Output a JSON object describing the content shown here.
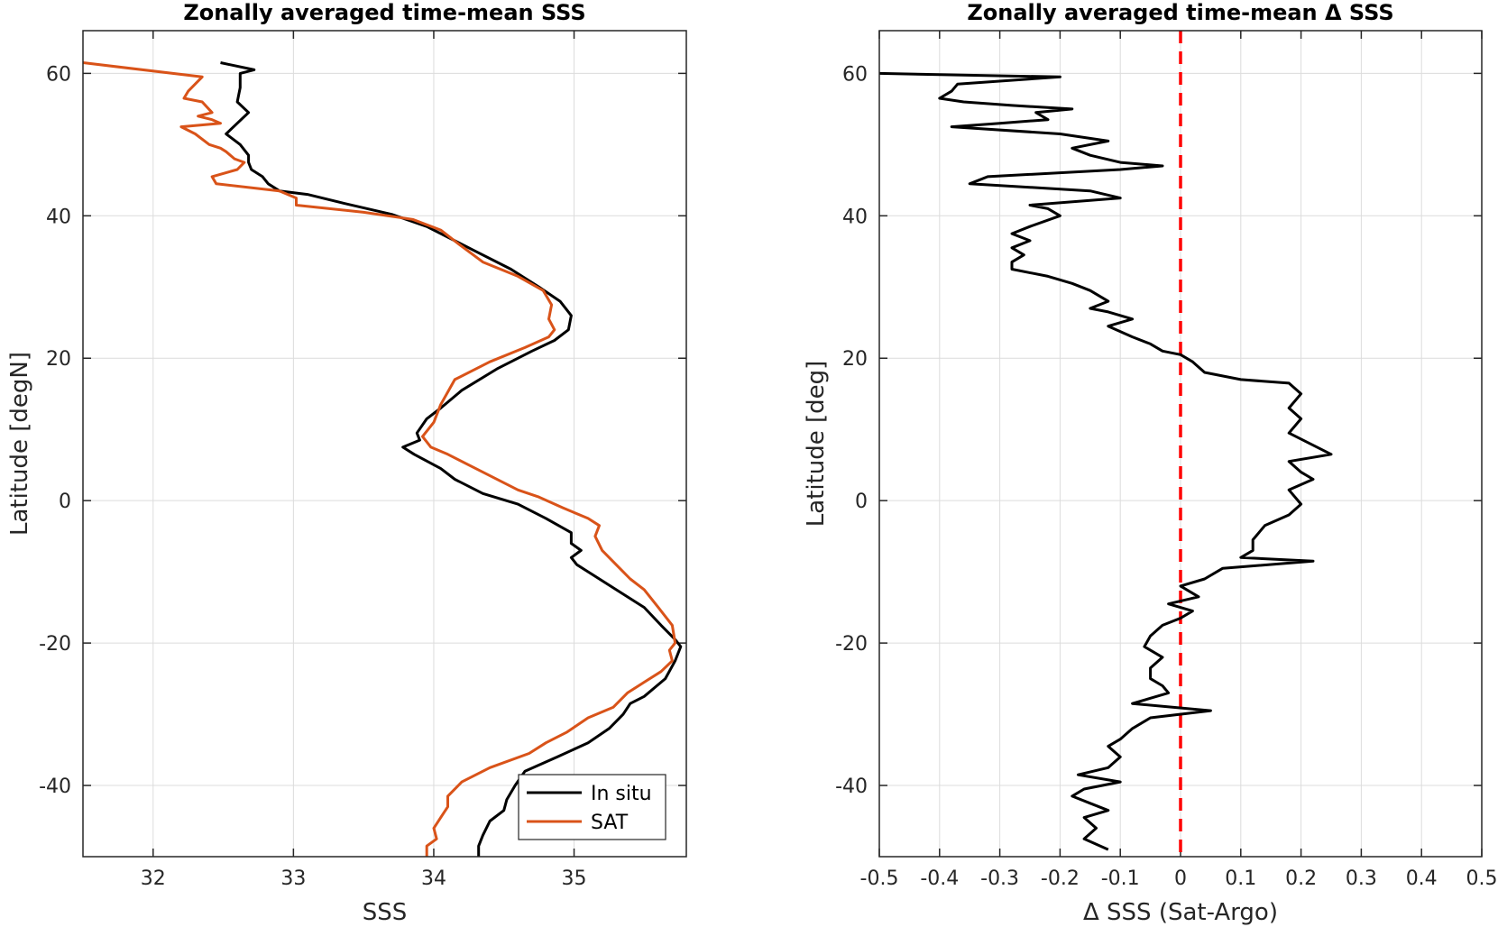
{
  "chart_data": [
    {
      "type": "line",
      "title": "Zonally averaged time-mean SSS",
      "xlabel": "SSS",
      "ylabel": "Latitude [degN]",
      "xlim": [
        31.5,
        35.8
      ],
      "ylim": [
        -50,
        66
      ],
      "xticks": [
        32,
        33,
        34,
        35
      ],
      "yticks": [
        -40,
        -20,
        0,
        20,
        40,
        60
      ],
      "grid": true,
      "legend_position": "bottom-right",
      "series": [
        {
          "name": "In situ",
          "color": "#000000",
          "points": [
            [
              32.48,
              61.5
            ],
            [
              32.72,
              60.5
            ],
            [
              32.62,
              60.0
            ],
            [
              32.62,
              58.0
            ],
            [
              32.6,
              56.0
            ],
            [
              32.68,
              54.5
            ],
            [
              32.6,
              53.0
            ],
            [
              32.52,
              51.5
            ],
            [
              32.62,
              50.0
            ],
            [
              32.68,
              48.5
            ],
            [
              32.68,
              47.5
            ],
            [
              32.7,
              46.5
            ],
            [
              32.78,
              45.5
            ],
            [
              32.82,
              44.5
            ],
            [
              32.9,
              43.5
            ],
            [
              33.1,
              43.0
            ],
            [
              33.35,
              41.8
            ],
            [
              33.7,
              40.2
            ],
            [
              33.95,
              38.5
            ],
            [
              34.1,
              37.0
            ],
            [
              34.3,
              35.0
            ],
            [
              34.55,
              32.5
            ],
            [
              34.75,
              30.0
            ],
            [
              34.9,
              28.0
            ],
            [
              34.98,
              26.0
            ],
            [
              34.96,
              24.0
            ],
            [
              34.86,
              22.5
            ],
            [
              34.7,
              21.0
            ],
            [
              34.45,
              18.5
            ],
            [
              34.2,
              15.5
            ],
            [
              34.05,
              13.0
            ],
            [
              33.95,
              11.5
            ],
            [
              33.88,
              9.5
            ],
            [
              33.9,
              8.5
            ],
            [
              33.78,
              7.5
            ],
            [
              33.86,
              6.5
            ],
            [
              34.05,
              4.5
            ],
            [
              34.15,
              3.0
            ],
            [
              34.35,
              1.0
            ],
            [
              34.6,
              -0.5
            ],
            [
              34.8,
              -2.5
            ],
            [
              34.98,
              -4.5
            ],
            [
              34.98,
              -6.0
            ],
            [
              35.05,
              -7.0
            ],
            [
              34.98,
              -8.0
            ],
            [
              35.02,
              -9.0
            ],
            [
              35.1,
              -10.0
            ],
            [
              35.3,
              -12.5
            ],
            [
              35.5,
              -15.0
            ],
            [
              35.62,
              -17.5
            ],
            [
              35.72,
              -19.5
            ],
            [
              35.76,
              -20.5
            ],
            [
              35.72,
              -22.5
            ],
            [
              35.65,
              -25.0
            ],
            [
              35.5,
              -27.5
            ],
            [
              35.4,
              -28.5
            ],
            [
              35.35,
              -30.0
            ],
            [
              35.25,
              -32.0
            ],
            [
              35.1,
              -34.0
            ],
            [
              34.88,
              -36.0
            ],
            [
              34.65,
              -38.0
            ],
            [
              34.58,
              -40.0
            ],
            [
              34.52,
              -42.0
            ],
            [
              34.5,
              -43.5
            ],
            [
              34.4,
              -45.0
            ],
            [
              34.35,
              -47.0
            ],
            [
              34.32,
              -48.5
            ],
            [
              34.32,
              -50.0
            ]
          ]
        },
        {
          "name": "SAT",
          "color": "#D95319",
          "points": [
            [
              31.5,
              61.5
            ],
            [
              32.35,
              59.5
            ],
            [
              32.25,
              57.5
            ],
            [
              32.22,
              56.5
            ],
            [
              32.35,
              56.0
            ],
            [
              32.42,
              54.5
            ],
            [
              32.32,
              54.0
            ],
            [
              32.42,
              53.5
            ],
            [
              32.48,
              53.0
            ],
            [
              32.2,
              52.5
            ],
            [
              32.3,
              51.5
            ],
            [
              32.4,
              50.0
            ],
            [
              32.48,
              49.5
            ],
            [
              32.52,
              49.0
            ],
            [
              32.58,
              48.0
            ],
            [
              32.65,
              47.5
            ],
            [
              32.6,
              46.5
            ],
            [
              32.42,
              45.5
            ],
            [
              32.45,
              44.5
            ],
            [
              32.9,
              43.5
            ],
            [
              33.02,
              42.5
            ],
            [
              33.02,
              41.5
            ],
            [
              33.5,
              40.5
            ],
            [
              33.85,
              39.5
            ],
            [
              34.05,
              38.0
            ],
            [
              34.18,
              36.0
            ],
            [
              34.35,
              33.5
            ],
            [
              34.6,
              31.5
            ],
            [
              34.78,
              29.5
            ],
            [
              34.84,
              27.5
            ],
            [
              34.82,
              25.5
            ],
            [
              34.86,
              24.0
            ],
            [
              34.82,
              23.0
            ],
            [
              34.65,
              21.5
            ],
            [
              34.4,
              19.5
            ],
            [
              34.15,
              17.0
            ],
            [
              34.05,
              13.5
            ],
            [
              34.0,
              11.0
            ],
            [
              33.92,
              9.0
            ],
            [
              33.98,
              7.5
            ],
            [
              34.1,
              6.5
            ],
            [
              34.35,
              4.0
            ],
            [
              34.6,
              1.5
            ],
            [
              34.75,
              0.5
            ],
            [
              34.92,
              -1.0
            ],
            [
              35.1,
              -2.5
            ],
            [
              35.18,
              -3.5
            ],
            [
              35.15,
              -5.0
            ],
            [
              35.2,
              -7.0
            ],
            [
              35.3,
              -9.0
            ],
            [
              35.4,
              -11.0
            ],
            [
              35.5,
              -12.5
            ],
            [
              35.6,
              -15.0
            ],
            [
              35.7,
              -17.5
            ],
            [
              35.72,
              -20.0
            ],
            [
              35.68,
              -21.0
            ],
            [
              35.7,
              -22.5
            ],
            [
              35.62,
              -24.0
            ],
            [
              35.5,
              -25.5
            ],
            [
              35.38,
              -27.0
            ],
            [
              35.28,
              -29.0
            ],
            [
              35.1,
              -30.5
            ],
            [
              34.95,
              -32.5
            ],
            [
              34.8,
              -34.0
            ],
            [
              34.68,
              -35.5
            ],
            [
              34.4,
              -37.5
            ],
            [
              34.2,
              -39.5
            ],
            [
              34.1,
              -41.5
            ],
            [
              34.1,
              -43.0
            ],
            [
              34.05,
              -44.5
            ],
            [
              34.0,
              -46.0
            ],
            [
              34.02,
              -47.5
            ],
            [
              33.95,
              -48.5
            ],
            [
              33.95,
              -50.0
            ]
          ]
        }
      ]
    },
    {
      "type": "line",
      "title": "Zonally averaged time-mean Δ SSS",
      "xlabel": "Δ SSS (Sat-Argo)",
      "ylabel": "Latitude [deg]",
      "xlim": [
        -0.5,
        0.5
      ],
      "ylim": [
        -50,
        66
      ],
      "xticks": [
        -0.5,
        -0.4,
        -0.3,
        -0.2,
        -0.1,
        0,
        0.1,
        0.2,
        0.3,
        0.4,
        0.5
      ],
      "xtick_labels": [
        "-0.5",
        "-0.4",
        "-0.3",
        "-0.2",
        "-0.1",
        "0",
        "0.1",
        "0.2",
        "0.3",
        "0.4",
        "0.5"
      ],
      "yticks": [
        -40,
        -20,
        0,
        20,
        40,
        60
      ],
      "grid": true,
      "reference_line": {
        "x": 0,
        "color": "#FF0000",
        "style": "dashed"
      },
      "series": [
        {
          "color": "#000000",
          "points": [
            [
              -0.5,
              60.0
            ],
            [
              -0.2,
              59.5
            ],
            [
              -0.37,
              58.5
            ],
            [
              -0.38,
              57.5
            ],
            [
              -0.4,
              56.5
            ],
            [
              -0.36,
              56.0
            ],
            [
              -0.28,
              55.5
            ],
            [
              -0.18,
              55.0
            ],
            [
              -0.24,
              54.5
            ],
            [
              -0.22,
              53.5
            ],
            [
              -0.3,
              53.0
            ],
            [
              -0.38,
              52.5
            ],
            [
              -0.2,
              51.5
            ],
            [
              -0.12,
              50.5
            ],
            [
              -0.18,
              49.5
            ],
            [
              -0.15,
              48.5
            ],
            [
              -0.1,
              47.5
            ],
            [
              -0.03,
              47.0
            ],
            [
              -0.1,
              46.5
            ],
            [
              -0.32,
              45.5
            ],
            [
              -0.35,
              44.5
            ],
            [
              -0.15,
              43.5
            ],
            [
              -0.1,
              42.5
            ],
            [
              -0.25,
              41.5
            ],
            [
              -0.22,
              41.0
            ],
            [
              -0.2,
              40.0
            ],
            [
              -0.25,
              38.5
            ],
            [
              -0.28,
              37.5
            ],
            [
              -0.25,
              36.5
            ],
            [
              -0.28,
              35.5
            ],
            [
              -0.26,
              34.5
            ],
            [
              -0.28,
              33.5
            ],
            [
              -0.28,
              32.5
            ],
            [
              -0.22,
              31.5
            ],
            [
              -0.18,
              30.5
            ],
            [
              -0.15,
              29.5
            ],
            [
              -0.12,
              28.0
            ],
            [
              -0.15,
              27.0
            ],
            [
              -0.12,
              26.5
            ],
            [
              -0.08,
              25.5
            ],
            [
              -0.12,
              24.5
            ],
            [
              -0.08,
              23.0
            ],
            [
              -0.05,
              22.0
            ],
            [
              -0.03,
              21.0
            ],
            [
              0.0,
              20.5
            ],
            [
              0.02,
              19.5
            ],
            [
              0.04,
              18.0
            ],
            [
              0.1,
              17.0
            ],
            [
              0.18,
              16.5
            ],
            [
              0.2,
              15.0
            ],
            [
              0.18,
              13.0
            ],
            [
              0.2,
              11.5
            ],
            [
              0.18,
              9.5
            ],
            [
              0.25,
              6.5
            ],
            [
              0.18,
              5.5
            ],
            [
              0.2,
              4.0
            ],
            [
              0.22,
              3.0
            ],
            [
              0.18,
              1.5
            ],
            [
              0.2,
              -0.5
            ],
            [
              0.18,
              -2.0
            ],
            [
              0.14,
              -3.5
            ],
            [
              0.12,
              -5.5
            ],
            [
              0.12,
              -7.0
            ],
            [
              0.1,
              -8.0
            ],
            [
              0.22,
              -8.5
            ],
            [
              0.07,
              -9.5
            ],
            [
              0.04,
              -11.0
            ],
            [
              0.0,
              -12.0
            ],
            [
              0.03,
              -13.5
            ],
            [
              -0.02,
              -14.5
            ],
            [
              0.02,
              -15.5
            ],
            [
              0.0,
              -16.5
            ],
            [
              -0.03,
              -17.5
            ],
            [
              -0.05,
              -19.0
            ],
            [
              -0.06,
              -20.5
            ],
            [
              -0.03,
              -22.0
            ],
            [
              -0.05,
              -23.5
            ],
            [
              -0.05,
              -25.0
            ],
            [
              -0.03,
              -26.0
            ],
            [
              -0.02,
              -27.0
            ],
            [
              -0.08,
              -28.5
            ],
            [
              0.05,
              -29.5
            ],
            [
              -0.05,
              -30.5
            ],
            [
              -0.08,
              -32.0
            ],
            [
              -0.1,
              -33.5
            ],
            [
              -0.12,
              -34.5
            ],
            [
              -0.1,
              -36.0
            ],
            [
              -0.12,
              -37.5
            ],
            [
              -0.17,
              -38.5
            ],
            [
              -0.1,
              -39.5
            ],
            [
              -0.16,
              -40.5
            ],
            [
              -0.18,
              -41.5
            ],
            [
              -0.15,
              -42.5
            ],
            [
              -0.12,
              -43.5
            ],
            [
              -0.16,
              -44.5
            ],
            [
              -0.14,
              -46.0
            ],
            [
              -0.16,
              -47.5
            ],
            [
              -0.12,
              -49.0
            ]
          ]
        }
      ]
    }
  ]
}
